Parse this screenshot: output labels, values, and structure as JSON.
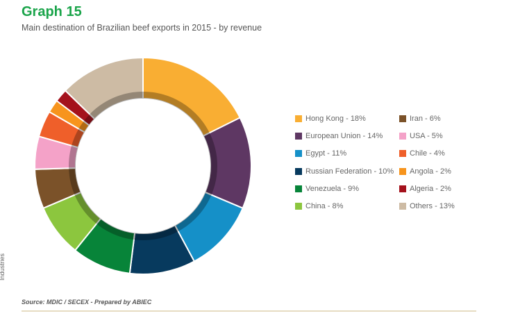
{
  "title": "Graph 15",
  "subtitle": "Main destination of Brazilian beef exports in 2015 - by revenue",
  "source": "Source: MDIC / SECEX - Prepared by ABIEC",
  "side_label": "Industries",
  "chart_data": {
    "type": "pie",
    "subtype": "donut",
    "title": "Graph 15",
    "subtitle": "Main destination of Brazilian beef exports in 2015 - by revenue",
    "legend_position": "right",
    "slices": [
      {
        "label": "Hong Kong - 18%",
        "name": "Hong Kong",
        "value": 18,
        "color": "#f9ae33"
      },
      {
        "label": "European Union - 14%",
        "name": "European Union",
        "value": 14,
        "color": "#5e3763"
      },
      {
        "label": "Egypt - 11%",
        "name": "Egypt",
        "value": 11,
        "color": "#1590c8"
      },
      {
        "label": "Russian Federation - 10%",
        "name": "Russian Federation",
        "value": 10,
        "color": "#073a5e"
      },
      {
        "label": "Venezuela - 9%",
        "name": "Venezuela",
        "value": 9,
        "color": "#078439"
      },
      {
        "label": "China - 8%",
        "name": "China",
        "value": 8,
        "color": "#8cc63e"
      },
      {
        "label": "Iran - 6%",
        "name": "Iran",
        "value": 6,
        "color": "#7b5229"
      },
      {
        "label": "USA - 5%",
        "name": "USA",
        "value": 5,
        "color": "#f4a2c8"
      },
      {
        "label": "Chile - 4%",
        "name": "Chile",
        "value": 4,
        "color": "#ef5f2a"
      },
      {
        "label": "Angola - 2%",
        "name": "Angola",
        "value": 2,
        "color": "#f7941d"
      },
      {
        "label": "Algeria - 2%",
        "name": "Algeria",
        "value": 2,
        "color": "#a4121c"
      },
      {
        "label": "Others - 13%",
        "name": "Others",
        "value": 13,
        "color": "#cdbba4"
      }
    ]
  }
}
